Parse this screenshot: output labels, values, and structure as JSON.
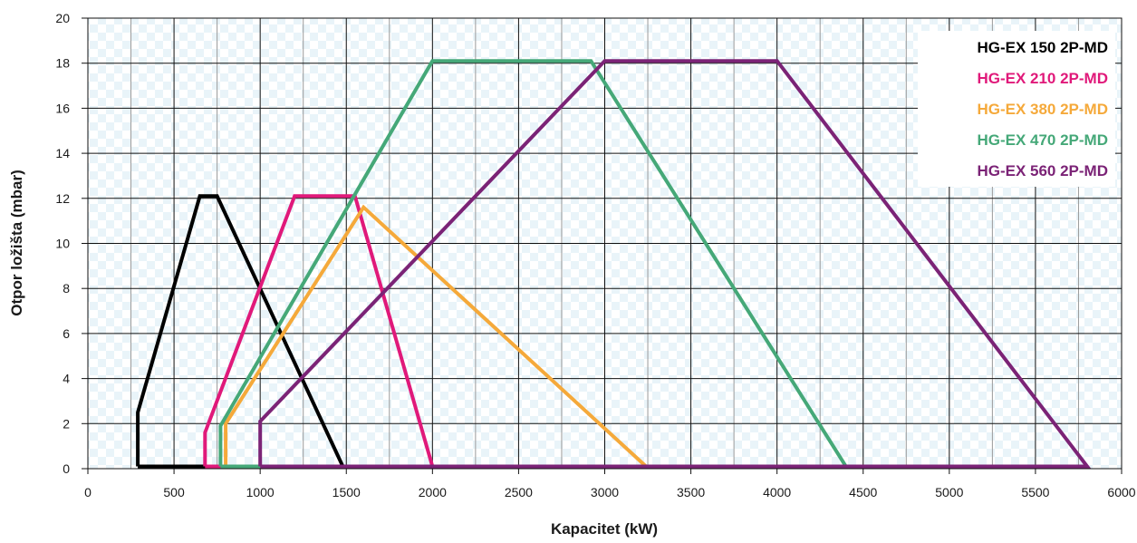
{
  "chart_data": {
    "type": "line",
    "xlabel": "Kapacitet (kW)",
    "ylabel": "Otpor ložišta (mbar)",
    "xlim": [
      0,
      6000
    ],
    "ylim": [
      0,
      20
    ],
    "x_ticks": [
      "0",
      "500",
      "1000",
      "1500",
      "2000",
      "2500",
      "3000",
      "3500",
      "4000",
      "4500",
      "5000",
      "5500",
      "6000"
    ],
    "y_ticks": [
      "0",
      "2",
      "4",
      "6",
      "8",
      "10",
      "12",
      "14",
      "16",
      "18",
      "20"
    ],
    "grid": true,
    "background": "checkered",
    "legend_position": "top-right",
    "series": [
      {
        "name": "HG-EX 150 2P-MD",
        "color": "#000000",
        "points": [
          [
            290,
            0.1
          ],
          [
            290,
            2.5
          ],
          [
            650,
            12.1
          ],
          [
            750,
            12.1
          ],
          [
            1480,
            0.1
          ],
          [
            290,
            0.1
          ]
        ]
      },
      {
        "name": "HG-EX 210 2P-MD",
        "color": "#e0197a",
        "points": [
          [
            680,
            0.1
          ],
          [
            680,
            1.6
          ],
          [
            1200,
            12.1
          ],
          [
            1550,
            12.1
          ],
          [
            2000,
            0.1
          ],
          [
            680,
            0.1
          ]
        ]
      },
      {
        "name": "HG-EX 380 2P-MD",
        "color": "#f5a93a",
        "points": [
          [
            800,
            0.1
          ],
          [
            800,
            2.0
          ],
          [
            1600,
            11.6
          ],
          [
            3240,
            0.1
          ],
          [
            800,
            0.1
          ]
        ]
      },
      {
        "name": "HG-EX 470 2P-MD",
        "color": "#45a878",
        "points": [
          [
            770,
            0.1
          ],
          [
            770,
            1.9
          ],
          [
            2000,
            18.1
          ],
          [
            2920,
            18.1
          ],
          [
            4400,
            0.1
          ],
          [
            770,
            0.1
          ]
        ]
      },
      {
        "name": "HG-EX 560 2P-MD",
        "color": "#7b2376",
        "points": [
          [
            1000,
            0.1
          ],
          [
            1000,
            2.1
          ],
          [
            3000,
            18.1
          ],
          [
            4000,
            18.1
          ],
          [
            5800,
            0.1
          ],
          [
            1000,
            0.1
          ]
        ]
      }
    ]
  }
}
